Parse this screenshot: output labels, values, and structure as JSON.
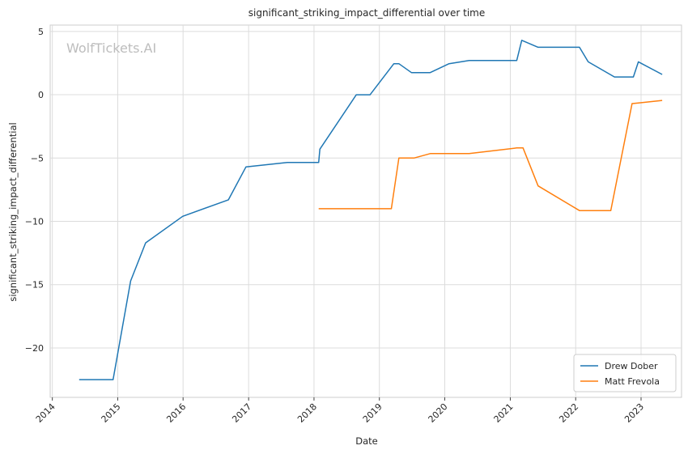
{
  "chart_data": {
    "type": "line",
    "title": "significant_striking_impact_differential over time",
    "xlabel": "Date",
    "ylabel": "significant_striking_impact_differential",
    "watermark": "WolfTickets.AI",
    "x_ticks": [
      "2014",
      "2015",
      "2016",
      "2017",
      "2018",
      "2019",
      "2020",
      "2021",
      "2022",
      "2023"
    ],
    "y_ticks": [
      5,
      0,
      -5,
      -10,
      -15,
      -20
    ],
    "y_tick_labels": [
      "5",
      "0",
      "−5",
      "−10",
      "−15",
      "−20"
    ],
    "xlim": [
      "2013-12-20",
      "2023-08-15"
    ],
    "ylim": [
      -23.9,
      5.5
    ],
    "grid": true,
    "legend_position": "bottom-right",
    "series": [
      {
        "name": "Drew Dober",
        "color": "#1f77b4",
        "points": [
          [
            "2014-05-31",
            -22.5
          ],
          [
            "2014-12-06",
            -22.5
          ],
          [
            "2015-03-14",
            -14.7
          ],
          [
            "2015-06-06",
            -11.7
          ],
          [
            "2015-12-30",
            -9.6
          ],
          [
            "2016-09-10",
            -8.3
          ],
          [
            "2016-12-17",
            -5.7
          ],
          [
            "2017-08-05",
            -5.35
          ],
          [
            "2018-01-27",
            -5.35
          ],
          [
            "2018-02-03",
            -4.3
          ],
          [
            "2018-08-25",
            0.0
          ],
          [
            "2018-11-10",
            0.0
          ],
          [
            "2019-03-23",
            2.45
          ],
          [
            "2019-04-20",
            2.45
          ],
          [
            "2019-06-29",
            1.75
          ],
          [
            "2019-10-12",
            1.75
          ],
          [
            "2020-01-25",
            2.45
          ],
          [
            "2020-05-16",
            2.7
          ],
          [
            "2021-02-06",
            2.7
          ],
          [
            "2021-03-06",
            4.3
          ],
          [
            "2021-06-05",
            3.75
          ],
          [
            "2022-01-22",
            3.75
          ],
          [
            "2022-03-12",
            2.6
          ],
          [
            "2022-08-06",
            1.4
          ],
          [
            "2022-11-19",
            1.4
          ],
          [
            "2022-12-17",
            2.6
          ],
          [
            "2023-04-29",
            1.6
          ]
        ]
      },
      {
        "name": "Matt Frevola",
        "color": "#ff7f0e",
        "points": [
          [
            "2018-01-27",
            -9.0
          ],
          [
            "2019-03-09",
            -9.0
          ],
          [
            "2019-04-20",
            -5.0
          ],
          [
            "2019-07-13",
            -5.0
          ],
          [
            "2019-10-12",
            -4.65
          ],
          [
            "2020-05-16",
            -4.65
          ],
          [
            "2021-02-06",
            -4.2
          ],
          [
            "2021-03-13",
            -4.2
          ],
          [
            "2021-06-05",
            -7.2
          ],
          [
            "2022-01-22",
            -9.15
          ],
          [
            "2022-07-16",
            -9.15
          ],
          [
            "2022-11-12",
            -0.7
          ],
          [
            "2022-12-17",
            -0.65
          ],
          [
            "2023-04-29",
            -0.45
          ]
        ]
      }
    ]
  }
}
